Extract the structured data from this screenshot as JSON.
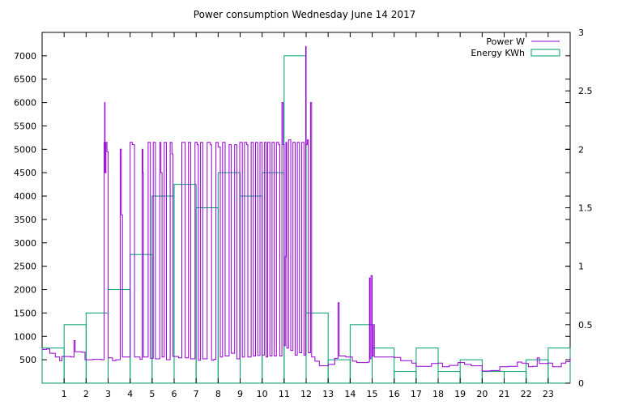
{
  "chart_data": {
    "type": "line",
    "title": "Power consumption Wednesday June 14 2017",
    "xlabel": "",
    "ylabel": "",
    "x_ticks": [
      "1",
      "2",
      "3",
      "4",
      "5",
      "6",
      "7",
      "8",
      "9",
      "10",
      "11",
      "12",
      "13",
      "14",
      "15",
      "16",
      "17",
      "18",
      "19",
      "20",
      "21",
      "22",
      "23"
    ],
    "y_left_ticks": [
      "500",
      "1000",
      "1500",
      "2000",
      "2500",
      "3000",
      "3500",
      "4000",
      "4500",
      "5000",
      "5500",
      "6000",
      "6500",
      "7000"
    ],
    "y_right_ticks": [
      "0",
      "0.5",
      "1",
      "1.5",
      "2",
      "2.5",
      "3"
    ],
    "xlim": [
      0,
      24
    ],
    "ylim_left": [
      0,
      7500
    ],
    "ylim_right": [
      0,
      3
    ],
    "grid": false,
    "legend_position": "top-right",
    "colors": {
      "power": "#9400d3",
      "energy": "#009e73"
    },
    "series": [
      {
        "name": "Power W",
        "axis": "left",
        "style": "step",
        "points": [
          [
            0.0,
            720
          ],
          [
            0.2,
            730
          ],
          [
            0.35,
            640
          ],
          [
            0.6,
            560
          ],
          [
            0.8,
            480
          ],
          [
            0.9,
            570
          ],
          [
            1.3,
            560
          ],
          [
            1.45,
            910
          ],
          [
            1.5,
            670
          ],
          [
            1.8,
            660
          ],
          [
            1.95,
            500
          ],
          [
            2.3,
            510
          ],
          [
            2.7,
            500
          ],
          [
            2.82,
            5150
          ],
          [
            2.84,
            6000
          ],
          [
            2.86,
            4500
          ],
          [
            2.9,
            5150
          ],
          [
            2.95,
            4950
          ],
          [
            3.0,
            540
          ],
          [
            3.2,
            480
          ],
          [
            3.35,
            500
          ],
          [
            3.55,
            5000
          ],
          [
            3.6,
            3600
          ],
          [
            3.65,
            560
          ],
          [
            3.75,
            560
          ],
          [
            3.95,
            560
          ],
          [
            4.0,
            5150
          ],
          [
            4.1,
            5100
          ],
          [
            4.2,
            560
          ],
          [
            4.45,
            510
          ],
          [
            4.55,
            5000
          ],
          [
            4.58,
            4500
          ],
          [
            4.6,
            560
          ],
          [
            4.8,
            560
          ],
          [
            4.82,
            5150
          ],
          [
            4.92,
            530
          ],
          [
            5.05,
            5150
          ],
          [
            5.15,
            520
          ],
          [
            5.35,
            5150
          ],
          [
            5.4,
            4500
          ],
          [
            5.45,
            560
          ],
          [
            5.55,
            5150
          ],
          [
            5.65,
            500
          ],
          [
            5.82,
            5150
          ],
          [
            5.9,
            4900
          ],
          [
            5.95,
            570
          ],
          [
            6.2,
            540
          ],
          [
            6.35,
            5150
          ],
          [
            6.5,
            540
          ],
          [
            6.65,
            5150
          ],
          [
            6.75,
            520
          ],
          [
            6.85,
            520
          ],
          [
            6.95,
            5150
          ],
          [
            7.05,
            5100
          ],
          [
            7.1,
            490
          ],
          [
            7.2,
            5150
          ],
          [
            7.3,
            520
          ],
          [
            7.5,
            5150
          ],
          [
            7.65,
            5100
          ],
          [
            7.7,
            490
          ],
          [
            7.8,
            510
          ],
          [
            7.9,
            5150
          ],
          [
            8.0,
            5050
          ],
          [
            8.1,
            560
          ],
          [
            8.2,
            5150
          ],
          [
            8.32,
            580
          ],
          [
            8.5,
            5100
          ],
          [
            8.6,
            640
          ],
          [
            8.75,
            5100
          ],
          [
            8.85,
            520
          ],
          [
            8.98,
            5150
          ],
          [
            9.1,
            560
          ],
          [
            9.2,
            5150
          ],
          [
            9.3,
            5100
          ],
          [
            9.35,
            560
          ],
          [
            9.5,
            5150
          ],
          [
            9.6,
            580
          ],
          [
            9.7,
            5150
          ],
          [
            9.8,
            590
          ],
          [
            9.9,
            5150
          ],
          [
            10.0,
            600
          ],
          [
            10.1,
            5150
          ],
          [
            10.18,
            560
          ],
          [
            10.25,
            5150
          ],
          [
            10.35,
            580
          ],
          [
            10.45,
            5150
          ],
          [
            10.55,
            580
          ],
          [
            10.65,
            5150
          ],
          [
            10.75,
            5100
          ],
          [
            10.8,
            580
          ],
          [
            10.9,
            6000
          ],
          [
            10.95,
            5100
          ],
          [
            11.0,
            800
          ],
          [
            11.05,
            2700
          ],
          [
            11.08,
            5150
          ],
          [
            11.12,
            750
          ],
          [
            11.2,
            5200
          ],
          [
            11.3,
            700
          ],
          [
            11.4,
            5150
          ],
          [
            11.5,
            600
          ],
          [
            11.6,
            5150
          ],
          [
            11.7,
            650
          ],
          [
            11.8,
            5150
          ],
          [
            11.9,
            600
          ],
          [
            11.98,
            7200
          ],
          [
            12.0,
            5100
          ],
          [
            12.05,
            5200
          ],
          [
            12.1,
            650
          ],
          [
            12.2,
            6000
          ],
          [
            12.25,
            560
          ],
          [
            12.4,
            470
          ],
          [
            12.6,
            370
          ],
          [
            13.0,
            400
          ],
          [
            13.3,
            530
          ],
          [
            13.45,
            1720
          ],
          [
            13.5,
            580
          ],
          [
            13.8,
            560
          ],
          [
            14.1,
            470
          ],
          [
            14.3,
            440
          ],
          [
            14.8,
            450
          ],
          [
            14.88,
            2250
          ],
          [
            14.9,
            520
          ],
          [
            14.95,
            2300
          ],
          [
            15.0,
            580
          ],
          [
            15.05,
            1250
          ],
          [
            15.1,
            560
          ],
          [
            15.2,
            560
          ],
          [
            15.6,
            560
          ],
          [
            16.0,
            550
          ],
          [
            16.3,
            480
          ],
          [
            16.8,
            430
          ],
          [
            17.0,
            360
          ],
          [
            17.4,
            360
          ],
          [
            17.7,
            420
          ],
          [
            18.0,
            430
          ],
          [
            18.2,
            350
          ],
          [
            18.5,
            380
          ],
          [
            18.9,
            440
          ],
          [
            19.2,
            400
          ],
          [
            19.5,
            370
          ],
          [
            20.0,
            260
          ],
          [
            20.4,
            270
          ],
          [
            20.8,
            350
          ],
          [
            21.2,
            360
          ],
          [
            21.6,
            450
          ],
          [
            21.8,
            430
          ],
          [
            22.0,
            420
          ],
          [
            22.1,
            350
          ],
          [
            22.3,
            360
          ],
          [
            22.5,
            540
          ],
          [
            22.6,
            420
          ],
          [
            23.0,
            430
          ],
          [
            23.2,
            350
          ],
          [
            23.4,
            350
          ],
          [
            23.6,
            430
          ],
          [
            23.8,
            460
          ],
          [
            24.0,
            540
          ]
        ]
      },
      {
        "name": "Energy KWh",
        "axis": "right",
        "style": "bar-steps",
        "hours": [
          0,
          1,
          2,
          3,
          4,
          5,
          6,
          7,
          8,
          9,
          10,
          11,
          12,
          13,
          14,
          15,
          16,
          17,
          18,
          19,
          20,
          21,
          22,
          23
        ],
        "values": [
          0.3,
          0.5,
          0.6,
          0.8,
          1.1,
          1.6,
          1.7,
          1.5,
          1.8,
          1.6,
          1.8,
          2.8,
          0.6,
          0.2,
          0.5,
          0.3,
          0.1,
          0.3,
          0.1,
          0.2,
          0.1,
          0.1,
          0.2,
          0.3
        ]
      }
    ]
  }
}
